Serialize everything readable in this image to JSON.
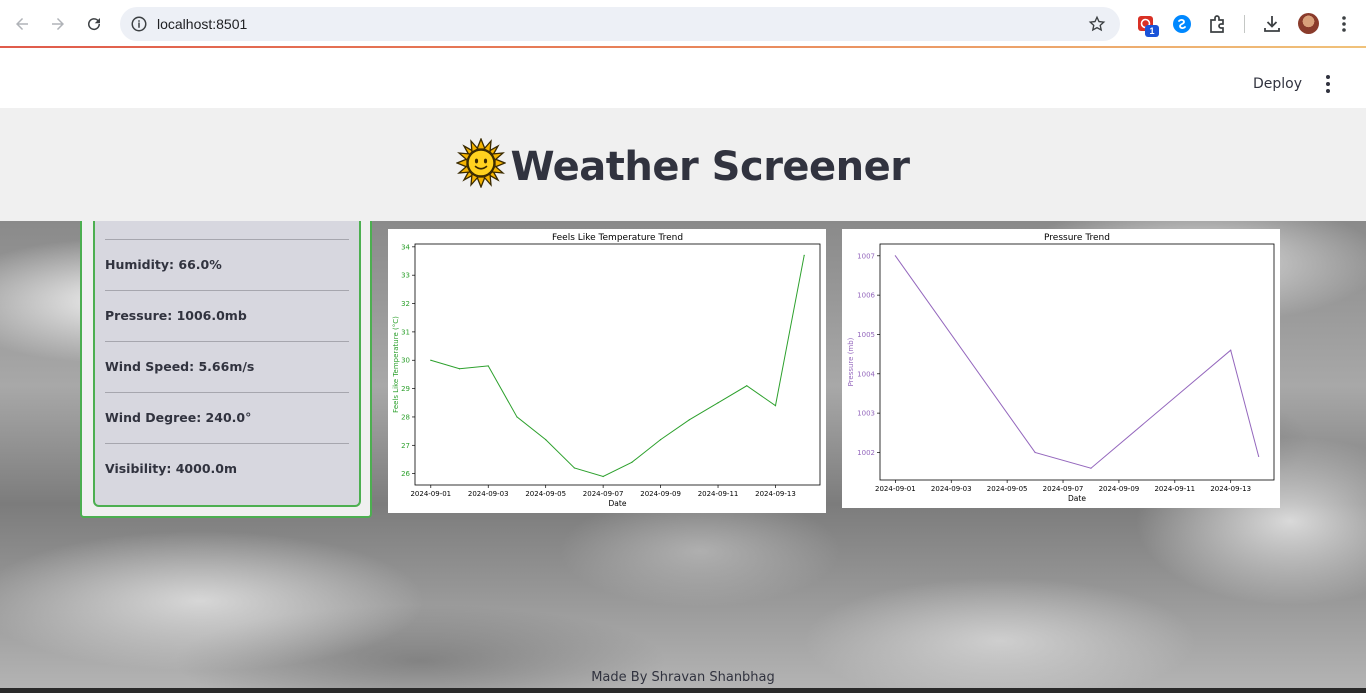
{
  "browser": {
    "url": "localhost:8501",
    "extension_badge": "1",
    "icons": [
      "back-arrow-icon",
      "forward-arrow-icon",
      "reload-icon",
      "site-info-icon",
      "bookmark-star-icon",
      "extension-icon",
      "shazam-icon",
      "puzzle-icon",
      "download-icon",
      "avatar",
      "kebab-menu-icon"
    ]
  },
  "app_header": {
    "deploy_label": "Deploy"
  },
  "title": {
    "emoji": "🌞",
    "text": "Weather Screener"
  },
  "stats": {
    "humidity": "Humidity: 66.0%",
    "pressure": "Pressure: 1006.0mb",
    "wind_speed": "Wind Speed: 5.66m/s",
    "wind_degree": "Wind Degree: 240.0°",
    "visibility": "Visibility: 4000.0m"
  },
  "colors": {
    "card_border": "#4caf50",
    "feels_like_line": "#2ca02c",
    "pressure_line": "#9467bd"
  },
  "chart_data": [
    {
      "type": "line",
      "title": "Feels Like Temperature Trend",
      "xlabel": "Date",
      "ylabel": "Feels Like Temperature (°C)",
      "x": [
        "2024-09-01",
        "2024-09-02",
        "2024-09-03",
        "2024-09-04",
        "2024-09-05",
        "2024-09-06",
        "2024-09-07",
        "2024-09-08",
        "2024-09-09",
        "2024-09-10",
        "2024-09-11",
        "2024-09-12",
        "2024-09-13",
        "2024-09-14"
      ],
      "series": [
        {
          "values": [
            30.0,
            29.7,
            29.8,
            28.0,
            27.2,
            26.2,
            25.9,
            26.4,
            27.2,
            27.9,
            28.5,
            29.1,
            28.4,
            33.7
          ]
        }
      ],
      "xticks": [
        "2024-09-01",
        "2024-09-03",
        "2024-09-05",
        "2024-09-07",
        "2024-09-09",
        "2024-09-11",
        "2024-09-13"
      ],
      "yticks": [
        "26",
        "27",
        "28",
        "29",
        "30",
        "31",
        "32",
        "33",
        "34"
      ],
      "ylim": [
        25.6,
        34.1
      ],
      "grid": false
    },
    {
      "type": "line",
      "title": "Pressure Trend",
      "xlabel": "Date",
      "ylabel": "Pressure (mb)",
      "x": [
        "2024-09-01",
        "2024-09-06",
        "2024-09-08",
        "2024-09-13",
        "2024-09-14"
      ],
      "series": [
        {
          "values": [
            1007,
            1002,
            1001.6,
            1004.6,
            1001.9
          ]
        }
      ],
      "xticks": [
        "2024-09-01",
        "2024-09-03",
        "2024-09-05",
        "2024-09-07",
        "2024-09-09",
        "2024-09-11",
        "2024-09-13"
      ],
      "yticks": [
        "1002",
        "1003",
        "1004",
        "1005",
        "1006",
        "1007"
      ],
      "ylim": [
        1001.3,
        1007.3
      ],
      "grid": false
    }
  ],
  "footer": {
    "text": "Made By Shravan Shanbhag"
  }
}
